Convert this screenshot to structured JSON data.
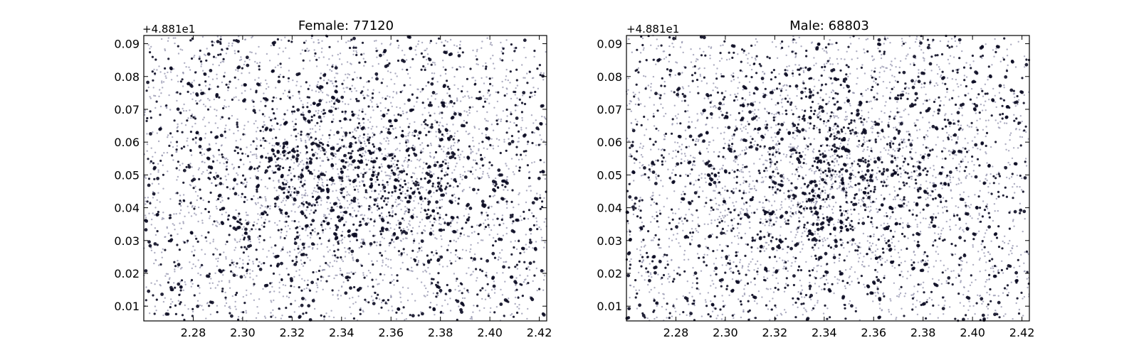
{
  "chart_data": [
    {
      "type": "scatter",
      "title": "Female: 77120",
      "y_offset_label": "+4.881e1",
      "xlim": [
        2.26,
        2.423
      ],
      "ylim": [
        0.0055,
        0.0925
      ],
      "x_ticks": [
        "2.28",
        "2.30",
        "2.32",
        "2.34",
        "2.36",
        "2.38",
        "2.40",
        "2.42"
      ],
      "y_ticks": [
        "0.01",
        "0.02",
        "0.03",
        "0.04",
        "0.05",
        "0.06",
        "0.07",
        "0.08",
        "0.09"
      ],
      "grid": false,
      "legend": "none",
      "point_color": "#0b0b22",
      "light_point_color": "#8a8aa6",
      "point_count": 77120,
      "seed": 7
    },
    {
      "type": "scatter",
      "title": "Male: 68803",
      "y_offset_label": "+4.881e1",
      "xlim": [
        2.26,
        2.423
      ],
      "ylim": [
        0.0055,
        0.0925
      ],
      "x_ticks": [
        "2.28",
        "2.30",
        "2.32",
        "2.34",
        "2.36",
        "2.38",
        "2.40",
        "2.42"
      ],
      "y_ticks": [
        "0.01",
        "0.02",
        "0.03",
        "0.04",
        "0.05",
        "0.06",
        "0.07",
        "0.08",
        "0.09"
      ],
      "grid": false,
      "legend": "none",
      "point_color": "#0b0b22",
      "light_point_color": "#8a8aa6",
      "point_count": 68803,
      "seed": 19
    }
  ]
}
